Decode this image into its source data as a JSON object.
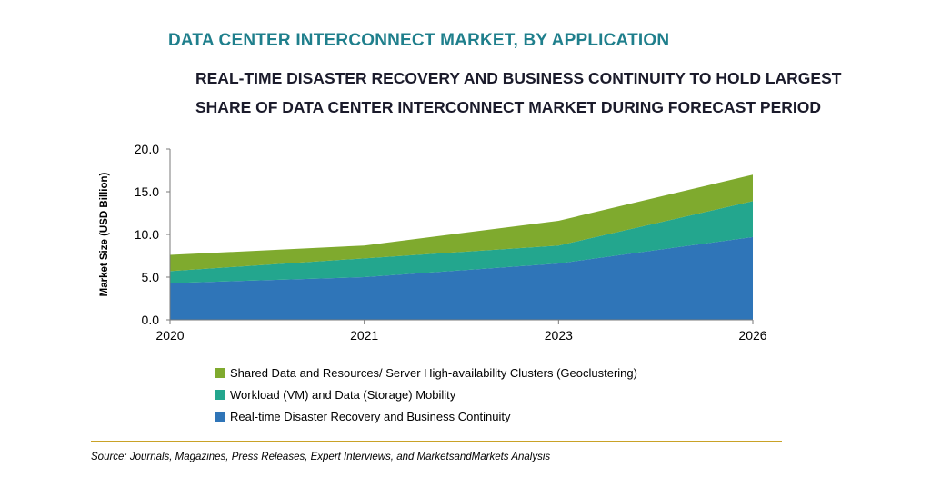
{
  "title": "DATA CENTER INTERCONNECT MARKET, BY APPLICATION",
  "subtitle_line1": "REAL-TIME DISASTER RECOVERY AND BUSINESS CONTINUITY TO HOLD LARGEST",
  "subtitle_line2": "SHARE OF DATA CENTER INTERCONNECT MARKET DURING FORECAST PERIOD",
  "source": "Source: Journals, Magazines, Press Releases, Expert Interviews, and MarketsandMarkets Analysis",
  "colors": {
    "title": "#1f7f8c",
    "rule": "#c9a227"
  },
  "chart_data": {
    "type": "area",
    "stacked": true,
    "x": [
      "2020",
      "2021",
      "2023",
      "2026"
    ],
    "ylabel": "Market Size (USD Billion)",
    "ylim": [
      0,
      20
    ],
    "yticks": [
      "0.0",
      "5.0",
      "10.0",
      "15.0",
      "20.0"
    ],
    "grid": false,
    "legend_position": "bottom",
    "series": [
      {
        "name": "Real-time Disaster Recovery and Business Continuity",
        "color": "#2f75b8",
        "values": [
          4.3,
          5.0,
          6.6,
          9.7
        ]
      },
      {
        "name": "Workload (VM) and Data (Storage) Mobility",
        "color": "#23a68e",
        "values": [
          1.4,
          2.2,
          2.1,
          4.2
        ]
      },
      {
        "name": "Shared Data and Resources/ Server High-availability Clusters (Geoclustering)",
        "color": "#7faa2e",
        "values": [
          1.9,
          1.5,
          2.9,
          3.1
        ]
      }
    ]
  }
}
